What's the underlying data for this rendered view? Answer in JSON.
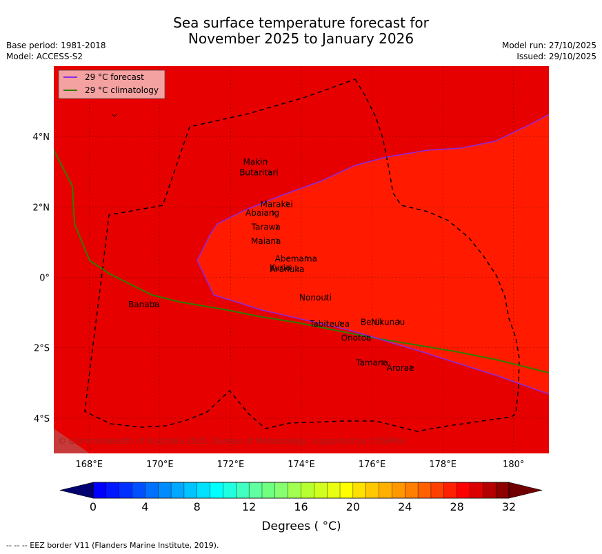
{
  "title": {
    "line1": "Sea surface temperature forecast for",
    "line2": "November 2025 to January 2026"
  },
  "meta": {
    "base_period": "Base period: 1981-2018",
    "model": "Model: ACCESS-S2",
    "model_run": "Model run: 27/10/2025",
    "issued": "Issued: 29/10/2025"
  },
  "legend": {
    "forecast_label": "29 °C  forecast",
    "climatology_label": "29 °C  climatology"
  },
  "axes": {
    "lon_ticks": [
      {
        "value": 168,
        "label": "168°E"
      },
      {
        "value": 170,
        "label": "170°E"
      },
      {
        "value": 172,
        "label": "172°E"
      },
      {
        "value": 174,
        "label": "174°E"
      },
      {
        "value": 176,
        "label": "176°E"
      },
      {
        "value": 178,
        "label": "178°E"
      },
      {
        "value": 180,
        "label": "180°"
      }
    ],
    "lat_ticks": [
      {
        "value": 4,
        "label": "4°N"
      },
      {
        "value": 2,
        "label": "2°N"
      },
      {
        "value": 0,
        "label": "0°"
      },
      {
        "value": -2,
        "label": "2°S"
      },
      {
        "value": -4,
        "label": "4°S"
      }
    ],
    "lon_range": [
      167,
      181
    ],
    "lat_range": [
      -5,
      6
    ]
  },
  "places": [
    {
      "name": "Makin",
      "lon": 172.7,
      "lat": 3.2
    },
    {
      "name": "Butaritari",
      "lon": 172.8,
      "lat": 2.9
    },
    {
      "name": "Marakei",
      "lon": 173.3,
      "lat": 2.0
    },
    {
      "name": "Abaiang",
      "lon": 172.9,
      "lat": 1.75
    },
    {
      "name": "Tarawa",
      "lon": 173.0,
      "lat": 1.35
    },
    {
      "name": "Maiana",
      "lon": 173.0,
      "lat": 0.95
    },
    {
      "name": "Abemama",
      "lon": 173.85,
      "lat": 0.45
    },
    {
      "name": "Kuria",
      "lon": 173.4,
      "lat": 0.2
    },
    {
      "name": "Aranuka",
      "lon": 173.6,
      "lat": 0.15
    },
    {
      "name": "Nonouti",
      "lon": 174.4,
      "lat": -0.65
    },
    {
      "name": "Banaba",
      "lon": 169.55,
      "lat": -0.85
    },
    {
      "name": "Beru",
      "lon": 175.95,
      "lat": -1.35
    },
    {
      "name": "Nikunau",
      "lon": 176.45,
      "lat": -1.35
    },
    {
      "name": "Tabiteuea",
      "lon": 174.8,
      "lat": -1.4
    },
    {
      "name": "Onotoa",
      "lon": 175.55,
      "lat": -1.8
    },
    {
      "name": "Tamana",
      "lon": 176.0,
      "lat": -2.5
    },
    {
      "name": "Arorae",
      "lon": 176.8,
      "lat": -2.65
    }
  ],
  "copyright": "© Commonwealth of Australia 2025, Bureau of Meteorology, supported by COSPPac",
  "colorbar": {
    "min": 0,
    "max": 32,
    "step": 1,
    "tick_labels": [
      "0",
      "4",
      "8",
      "12",
      "16",
      "20",
      "24",
      "28",
      "32"
    ],
    "label": "Degrees ( °C)",
    "colors": [
      "#00008c",
      "#0000b4",
      "#0000dc",
      "#0000ff",
      "#0018ff",
      "#0030ff",
      "#0050ff",
      "#0070ff",
      "#008cff",
      "#00a8ff",
      "#00c4ff",
      "#00e0ff",
      "#00ffff",
      "#20ffe0",
      "#40ffc0",
      "#60ffa0",
      "#70ff80",
      "#88ff70",
      "#a0ff50",
      "#b8ff30",
      "#d0ff20",
      "#e8ff10",
      "#ffff00",
      "#ffe000",
      "#ffc800",
      "#ffb000",
      "#ff9800",
      "#ff8000",
      "#ff6000",
      "#ff4000",
      "#ff2000",
      "#ff0000",
      "#dc0000",
      "#b40000",
      "#8c0000"
    ],
    "under_color": "#000070",
    "over_color": "#700000"
  },
  "map_colors": {
    "region_29_30": "#e60000",
    "region_30_31": "#ff1a00",
    "region_28_29": "#c83a3a",
    "forecast_line": "#8a2be2",
    "climatology_line": "#2e7d00",
    "legend_bg": "#f4a1a1"
  },
  "footer": "--  --  -- EEZ border V11 (Flanders Marine Institute, 2019)."
}
